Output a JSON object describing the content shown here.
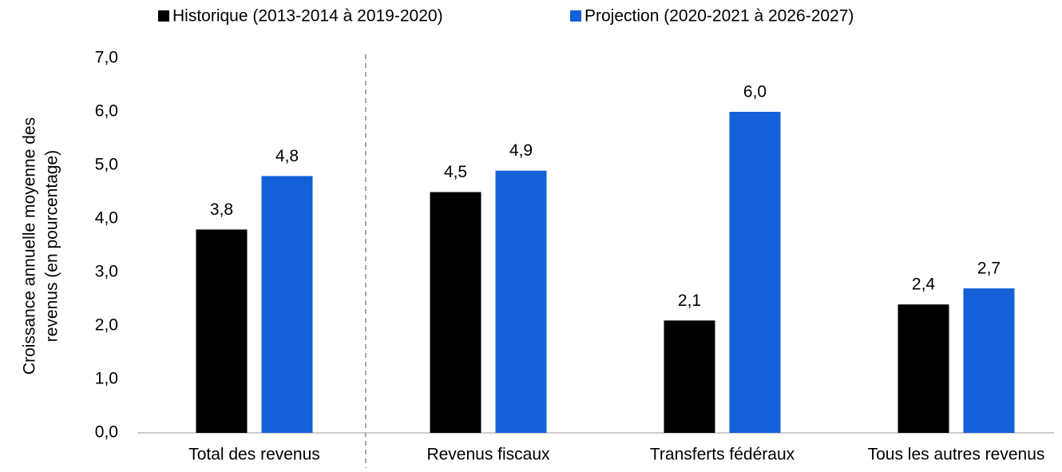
{
  "chart_data": {
    "type": "bar",
    "ylabel": [
      "Croissance annuelle moyenne des",
      "revenus (en pourcentage)"
    ],
    "categories": [
      "Total des revenus",
      "Revenus fiscaux",
      "Transferts fédéraux",
      "Tous les autres revenus"
    ],
    "series": [
      {
        "name": "Historique (2013-2014 à 2019-2020)",
        "color": "#000000",
        "values": [
          3.8,
          4.5,
          2.1,
          2.4
        ],
        "value_labels": [
          "3,8",
          "4,5",
          "2,1",
          "2,4"
        ]
      },
      {
        "name": "Projection (2020-2021 à 2026-2027)",
        "color": "#1360d8",
        "values": [
          4.8,
          4.9,
          6.0,
          2.7
        ],
        "value_labels": [
          "4,8",
          "4,9",
          "6,0",
          "2,7"
        ]
      }
    ],
    "ylim": [
      0,
      7
    ],
    "yticks": [
      {
        "value": 0,
        "label": "0,0"
      },
      {
        "value": 1,
        "label": "1,0"
      },
      {
        "value": 2,
        "label": "2,0"
      },
      {
        "value": 3,
        "label": "3,0"
      },
      {
        "value": 4,
        "label": "4,0"
      },
      {
        "value": 5,
        "label": "5,0"
      },
      {
        "value": 6,
        "label": "6,0"
      },
      {
        "value": 7,
        "label": "7,0"
      }
    ],
    "legend": "top"
  }
}
